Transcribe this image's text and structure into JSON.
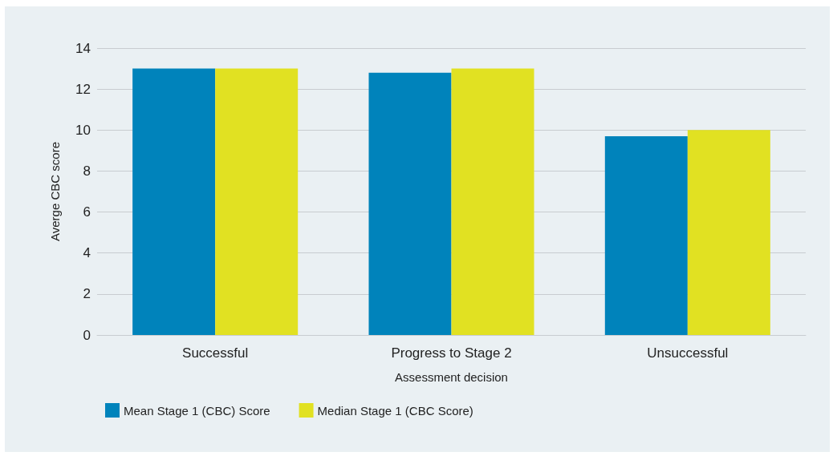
{
  "chart_data": {
    "type": "bar",
    "xlabel": "Assessment decision",
    "ylabel": "Averge CBC score",
    "categories": [
      "Successful",
      "Progress to Stage 2",
      "Unsuccessful"
    ],
    "series": [
      {
        "name": "Mean Stage 1 (CBC) Score",
        "color": "#0083bb",
        "values": [
          13,
          12.8,
          9.7
        ]
      },
      {
        "name": "Median Stage 1 (CBC Score)",
        "color": "#e1e122",
        "values": [
          13,
          13,
          10
        ]
      }
    ],
    "ylim": [
      0,
      14
    ],
    "yticks": [
      0,
      2,
      4,
      6,
      8,
      10,
      12,
      14
    ],
    "grid": "y",
    "legend": "bottom left"
  }
}
